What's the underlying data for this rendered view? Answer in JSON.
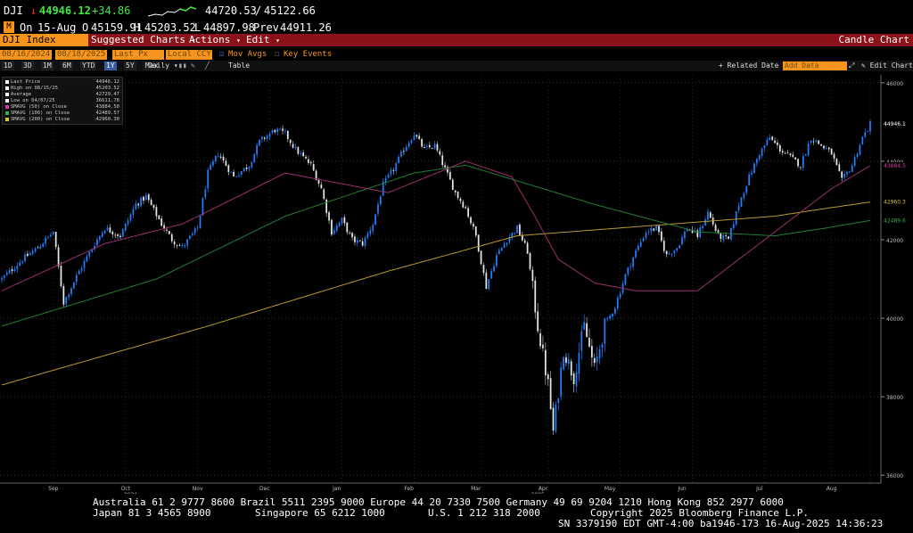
{
  "quote": {
    "ticker": "DJI",
    "arrow": "↓",
    "last": "44946.12",
    "change": "+34.86",
    "range_low": "44720.53",
    "range_sep": "/",
    "range_high": "45122.66",
    "on_label": "On",
    "date": "15-Aug",
    "o_label": "O",
    "open": "45159.91",
    "h_label": "H",
    "high": "45203.52",
    "l_label": "L",
    "low": "44897.98",
    "prev_label": "Prev",
    "prev": "44911.26"
  },
  "toolbar": {
    "security": "DJI Index",
    "suggested": "Suggested Charts",
    "actions": "Actions",
    "edit": "Edit",
    "chart_type": "Candle Chart"
  },
  "options": {
    "start_date": "08/16/2024",
    "end_date": "08/18/2025",
    "field": "Last Px",
    "currency": "Local CCY",
    "mov_avgs": "Mov Avgs",
    "key_events": "Key Events"
  },
  "timeframes": [
    {
      "label": "1D",
      "selected": false
    },
    {
      "label": "3D",
      "selected": false
    },
    {
      "label": "1M",
      "selected": false
    },
    {
      "label": "6M",
      "selected": false
    },
    {
      "label": "YTD",
      "selected": false
    },
    {
      "label": "1Y",
      "selected": true
    },
    {
      "label": "5Y",
      "selected": false
    },
    {
      "label": "Max",
      "selected": false
    }
  ],
  "timeframe_extra": {
    "periodicity": "Daily",
    "table": "Table",
    "related_date": "Related Date",
    "add_data": "Add Data",
    "edit_chart": "Edit Chart"
  },
  "legend": [
    {
      "label": "Last Price",
      "value": "44946.12",
      "color": "#ffffff"
    },
    {
      "label": "High on 08/15/25",
      "value": "45203.52",
      "color": "#ffffff"
    },
    {
      "label": "Average",
      "value": "42729.47",
      "color": "#ffffff"
    },
    {
      "label": "Low on 04/07/25",
      "value": "36611.78",
      "color": "#ffffff"
    },
    {
      "label": "SMAVG (50)  on Close",
      "value": "43884.50",
      "color": "#d63aa5"
    },
    {
      "label": "SMAVG (100)  on Close",
      "value": "42489.57",
      "color": "#2fb24a"
    },
    {
      "label": "SMAVG (200)  on Close",
      "value": "42960.30",
      "color": "#d9c33a"
    }
  ],
  "chart_data": {
    "type": "candlestick",
    "y_ticks": [
      "46000",
      "44000",
      "42000",
      "40000",
      "38000",
      "36000"
    ],
    "ylim": [
      35800,
      46200
    ],
    "x_labels": [
      "Sep",
      "Oct",
      "2024",
      "Nov",
      "Dec",
      "Jan",
      "Feb",
      "Mar",
      "2025",
      "Apr",
      "May",
      "Jun",
      "Jul",
      "Aug"
    ],
    "last_label": "44946.1",
    "ma_labels": [
      {
        "text": "43884.5",
        "color": "#d63aa5",
        "value": 43884.5
      },
      {
        "text": "42960.3",
        "color": "#d9c33a",
        "value": 42960.3
      },
      {
        "text": "42489.6",
        "color": "#2fb24a",
        "value": 42489.6
      }
    ],
    "anchors": [
      [
        0,
        41000
      ],
      [
        8,
        41500
      ],
      [
        14,
        41800
      ],
      [
        20,
        42200
      ],
      [
        24,
        40400
      ],
      [
        30,
        41200
      ],
      [
        36,
        41900
      ],
      [
        40,
        42300
      ],
      [
        46,
        42100
      ],
      [
        52,
        42900
      ],
      [
        56,
        43100
      ],
      [
        62,
        42400
      ],
      [
        66,
        42000
      ],
      [
        70,
        41800
      ],
      [
        76,
        42300
      ],
      [
        80,
        43700
      ],
      [
        84,
        44200
      ],
      [
        90,
        43600
      ],
      [
        96,
        43900
      ],
      [
        100,
        44500
      ],
      [
        106,
        44800
      ],
      [
        110,
        44700
      ],
      [
        114,
        44300
      ],
      [
        120,
        43900
      ],
      [
        124,
        43300
      ],
      [
        128,
        42200
      ],
      [
        132,
        42500
      ],
      [
        136,
        42000
      ],
      [
        140,
        41900
      ],
      [
        144,
        42400
      ],
      [
        148,
        43400
      ],
      [
        152,
        43800
      ],
      [
        156,
        44300
      ],
      [
        160,
        44700
      ],
      [
        164,
        44300
      ],
      [
        168,
        44400
      ],
      [
        172,
        43800
      ],
      [
        176,
        43200
      ],
      [
        180,
        42800
      ],
      [
        184,
        42100
      ],
      [
        188,
        40800
      ],
      [
        192,
        41600
      ],
      [
        196,
        42000
      ],
      [
        200,
        42300
      ],
      [
        204,
        41700
      ],
      [
        208,
        39800
      ],
      [
        212,
        38300
      ],
      [
        214,
        37100
      ],
      [
        218,
        39200
      ],
      [
        222,
        38500
      ],
      [
        226,
        39800
      ],
      [
        230,
        38700
      ],
      [
        234,
        39800
      ],
      [
        238,
        40300
      ],
      [
        242,
        41100
      ],
      [
        246,
        41700
      ],
      [
        250,
        42200
      ],
      [
        254,
        42300
      ],
      [
        258,
        41600
      ],
      [
        262,
        41800
      ],
      [
        266,
        42300
      ],
      [
        270,
        42100
      ],
      [
        274,
        42700
      ],
      [
        278,
        42100
      ],
      [
        282,
        42000
      ],
      [
        286,
        42900
      ],
      [
        290,
        43600
      ],
      [
        294,
        44200
      ],
      [
        298,
        44600
      ],
      [
        302,
        44300
      ],
      [
        306,
        44100
      ],
      [
        310,
        43900
      ],
      [
        314,
        44600
      ],
      [
        318,
        44400
      ],
      [
        322,
        44200
      ],
      [
        326,
        43500
      ],
      [
        330,
        43900
      ],
      [
        334,
        44600
      ],
      [
        337,
        44946
      ]
    ],
    "sma50": [
      [
        0,
        40700
      ],
      [
        40,
        41900
      ],
      [
        70,
        42400
      ],
      [
        110,
        43700
      ],
      [
        150,
        43200
      ],
      [
        180,
        44000
      ],
      [
        198,
        43600
      ],
      [
        206,
        42700
      ],
      [
        216,
        41500
      ],
      [
        230,
        40900
      ],
      [
        246,
        40700
      ],
      [
        270,
        40700
      ],
      [
        300,
        42200
      ],
      [
        322,
        43300
      ],
      [
        337,
        43884
      ]
    ],
    "sma100": [
      [
        0,
        39800
      ],
      [
        60,
        41000
      ],
      [
        110,
        42600
      ],
      [
        160,
        43700
      ],
      [
        180,
        43900
      ],
      [
        200,
        43500
      ],
      [
        230,
        42900
      ],
      [
        270,
        42200
      ],
      [
        300,
        42100
      ],
      [
        320,
        42300
      ],
      [
        337,
        42490
      ]
    ],
    "sma200": [
      [
        0,
        38300
      ],
      [
        80,
        39800
      ],
      [
        150,
        41200
      ],
      [
        200,
        42100
      ],
      [
        260,
        42400
      ],
      [
        300,
        42600
      ],
      [
        320,
        42800
      ],
      [
        337,
        42960
      ]
    ]
  },
  "footer": {
    "line1": "Australia 61 2 9777 8600 Brazil 5511 2395 9000 Europe 44 20 7330 7500 Germany 49 69 9204 1210 Hong Kong 852 2977 6000",
    "line2a": "Japan 81 3 4565 8900",
    "line2b": "Singapore 65 6212 1000",
    "line2c": "U.S. 1 212 318 2000",
    "line2d": "Copyright 2025 Bloomberg Finance L.P.",
    "line3": "SN 3379190 EDT  GMT-4:00 ba1946-173 16-Aug-2025 14:36:23"
  },
  "colors": {
    "up_candle": "#1e7fff",
    "down_candle": "#ffffff",
    "menu_red": "#8b1218",
    "amber": "#f7941d"
  }
}
